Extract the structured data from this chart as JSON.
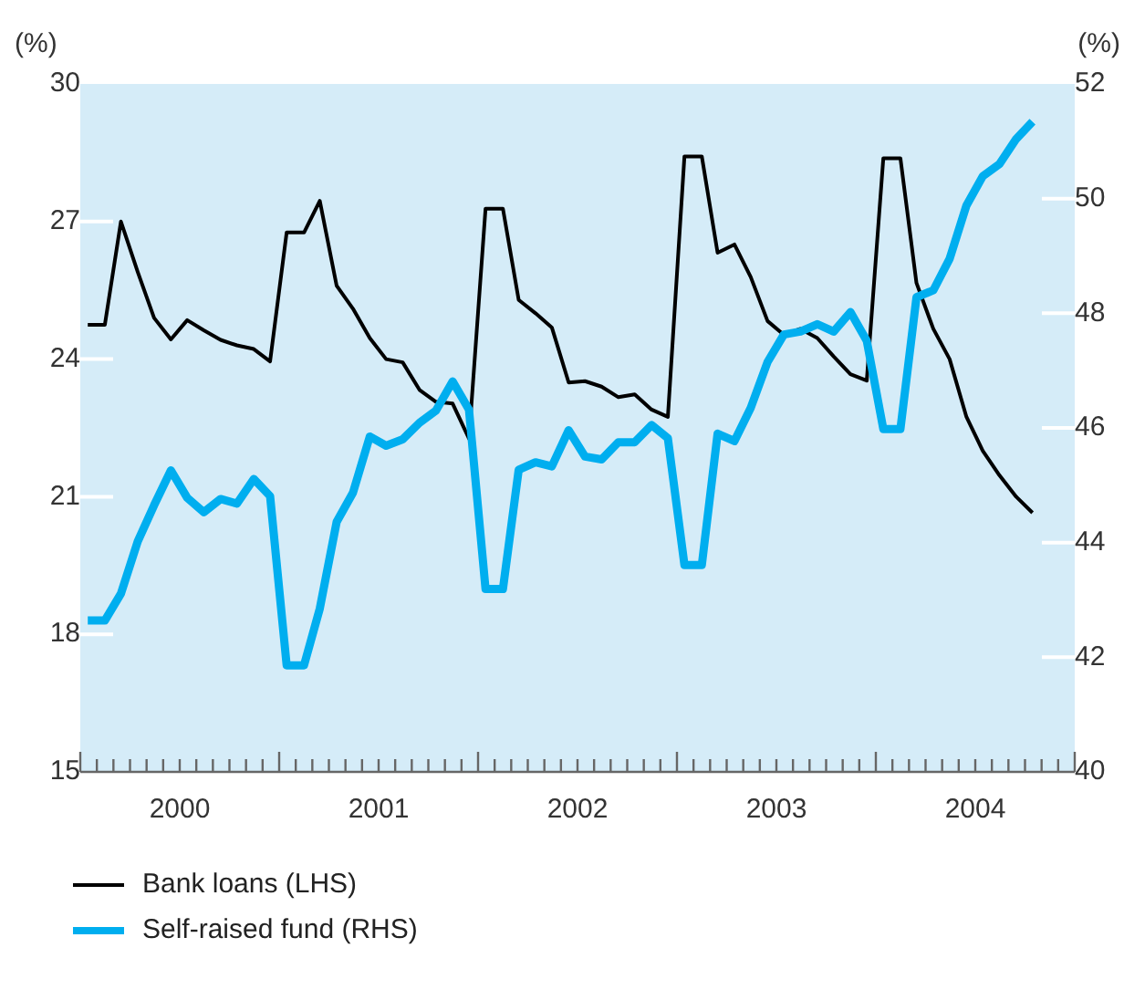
{
  "chart_data": {
    "type": "line",
    "ylabel": "(%)",
    "y2label": "(%)",
    "legend": "bottom",
    "grid": false,
    "marker": "none",
    "line_style": "solid",
    "x": [
      "2000-01-15",
      "2000-02-15",
      "2000-03-15",
      "2000-04-15",
      "2000-05-15",
      "2000-06-15",
      "2000-07-15",
      "2000-08-15",
      "2000-09-15",
      "2000-10-15",
      "2000-11-15",
      "2000-12-15",
      "2001-01-15",
      "2001-02-15",
      "2001-03-15",
      "2001-04-15",
      "2001-05-15",
      "2001-06-15",
      "2001-07-15",
      "2001-08-15",
      "2001-09-15",
      "2001-10-15",
      "2001-11-15",
      "2001-12-15",
      "2002-01-15",
      "2002-02-15",
      "2002-03-15",
      "2002-04-15",
      "2002-05-15",
      "2002-06-15",
      "2002-07-15",
      "2002-08-15",
      "2002-09-15",
      "2002-10-15",
      "2002-11-15",
      "2002-12-15",
      "2003-01-15",
      "2003-02-15",
      "2003-03-15",
      "2003-04-15",
      "2003-05-15",
      "2003-06-15",
      "2003-07-15",
      "2003-08-15",
      "2003-09-15",
      "2003-10-15",
      "2003-11-15",
      "2003-12-15",
      "2004-01-15",
      "2004-02-15",
      "2004-03-15",
      "2004-04-15",
      "2004-05-15",
      "2004-06-15",
      "2004-07-15",
      "2004-08-15",
      "2004-09-15",
      "2004-10-15"
    ],
    "xlim": [
      "2000-01-01",
      "2005-01-01"
    ],
    "xticks": [
      {
        "value": "2000-01-01",
        "label": null
      },
      {
        "value": "2000-02-01",
        "label": null
      },
      {
        "value": "2000-03-01",
        "label": null
      },
      {
        "value": "2000-04-01",
        "label": null
      },
      {
        "value": "2000-05-01",
        "label": null
      },
      {
        "value": "2000-06-01",
        "label": null
      },
      {
        "value": "2000-07-01",
        "label": "2000"
      },
      {
        "value": "2000-08-01",
        "label": null
      },
      {
        "value": "2000-09-01",
        "label": null
      },
      {
        "value": "2000-10-01",
        "label": null
      },
      {
        "value": "2000-11-01",
        "label": null
      },
      {
        "value": "2000-12-01",
        "label": null
      },
      {
        "value": "2001-01-01",
        "label": null
      },
      {
        "value": "2001-02-01",
        "label": null
      },
      {
        "value": "2001-03-01",
        "label": null
      },
      {
        "value": "2001-04-01",
        "label": null
      },
      {
        "value": "2001-05-01",
        "label": null
      },
      {
        "value": "2001-06-01",
        "label": null
      },
      {
        "value": "2001-07-01",
        "label": "2001"
      },
      {
        "value": "2001-08-01",
        "label": null
      },
      {
        "value": "2001-09-01",
        "label": null
      },
      {
        "value": "2001-10-01",
        "label": null
      },
      {
        "value": "2001-11-01",
        "label": null
      },
      {
        "value": "2001-12-01",
        "label": null
      },
      {
        "value": "2002-01-01",
        "label": null
      },
      {
        "value": "2002-02-01",
        "label": null
      },
      {
        "value": "2002-03-01",
        "label": null
      },
      {
        "value": "2002-04-01",
        "label": null
      },
      {
        "value": "2002-05-01",
        "label": null
      },
      {
        "value": "2002-06-01",
        "label": null
      },
      {
        "value": "2002-07-01",
        "label": "2002"
      },
      {
        "value": "2002-08-01",
        "label": null
      },
      {
        "value": "2002-09-01",
        "label": null
      },
      {
        "value": "2002-10-01",
        "label": null
      },
      {
        "value": "2002-11-01",
        "label": null
      },
      {
        "value": "2002-12-01",
        "label": null
      },
      {
        "value": "2003-01-01",
        "label": null
      },
      {
        "value": "2003-02-01",
        "label": null
      },
      {
        "value": "2003-03-01",
        "label": null
      },
      {
        "value": "2003-04-01",
        "label": null
      },
      {
        "value": "2003-05-01",
        "label": null
      },
      {
        "value": "2003-06-01",
        "label": null
      },
      {
        "value": "2003-07-01",
        "label": "2003"
      },
      {
        "value": "2003-08-01",
        "label": null
      },
      {
        "value": "2003-09-01",
        "label": null
      },
      {
        "value": "2003-10-01",
        "label": null
      },
      {
        "value": "2003-11-01",
        "label": null
      },
      {
        "value": "2003-12-01",
        "label": null
      },
      {
        "value": "2004-01-01",
        "label": null
      },
      {
        "value": "2004-02-01",
        "label": null
      },
      {
        "value": "2004-03-01",
        "label": null
      },
      {
        "value": "2004-04-01",
        "label": null
      },
      {
        "value": "2004-05-01",
        "label": null
      },
      {
        "value": "2004-06-01",
        "label": null
      },
      {
        "value": "2004-07-01",
        "label": "2004"
      },
      {
        "value": "2004-08-01",
        "label": null
      },
      {
        "value": "2004-09-01",
        "label": null
      },
      {
        "value": "2004-10-01",
        "label": null
      },
      {
        "value": "2004-11-01",
        "label": null
      },
      {
        "value": "2004-12-01",
        "label": null
      },
      {
        "value": "2005-01-01",
        "label": null
      }
    ],
    "ylim": [
      15,
      30
    ],
    "yticks": [
      15,
      18,
      21,
      24,
      27,
      30
    ],
    "y2lim": [
      40,
      52
    ],
    "y2ticks": [
      40,
      42,
      44,
      46,
      48,
      50,
      52
    ],
    "series": [
      {
        "name": "Bank loans (LHS)",
        "color": "#000000",
        "values": [
          24.75,
          24.75,
          27.0,
          25.9,
          24.9,
          24.43,
          24.85,
          24.63,
          24.42,
          24.3,
          24.22,
          23.95,
          26.76,
          26.76,
          27.45,
          25.6,
          25.1,
          24.46,
          24.0,
          23.93,
          23.33,
          23.07,
          23.03,
          22.27,
          27.28,
          27.28,
          25.29,
          25.0,
          24.69,
          23.49,
          23.52,
          23.4,
          23.17,
          23.23,
          22.9,
          22.74,
          28.42,
          28.42,
          26.32,
          26.5,
          25.79,
          24.83,
          24.53,
          24.66,
          24.46,
          24.06,
          23.67,
          23.53,
          28.38,
          28.38,
          25.66,
          24.66,
          24.0,
          22.74,
          22.0,
          21.47,
          21.0,
          20.65
        ]
      },
      {
        "name": "Self-raised fund (RHS)",
        "color": "#00aeef",
        "axis": "y2",
        "values": [
          42.64,
          42.64,
          43.11,
          44.02,
          44.65,
          45.26,
          44.78,
          44.53,
          44.76,
          44.68,
          45.11,
          44.81,
          41.86,
          41.86,
          42.85,
          44.36,
          44.87,
          45.85,
          45.69,
          45.8,
          46.09,
          46.3,
          46.81,
          46.32,
          43.19,
          43.19,
          45.27,
          45.4,
          45.33,
          45.96,
          45.5,
          45.45,
          45.75,
          45.75,
          46.05,
          45.82,
          43.61,
          43.61,
          45.9,
          45.77,
          46.35,
          47.15,
          47.63,
          47.68,
          47.81,
          47.68,
          48.02,
          47.52,
          45.98,
          45.98,
          48.28,
          48.4,
          48.95,
          49.88,
          50.39,
          50.6,
          51.04,
          51.34
        ]
      }
    ]
  }
}
